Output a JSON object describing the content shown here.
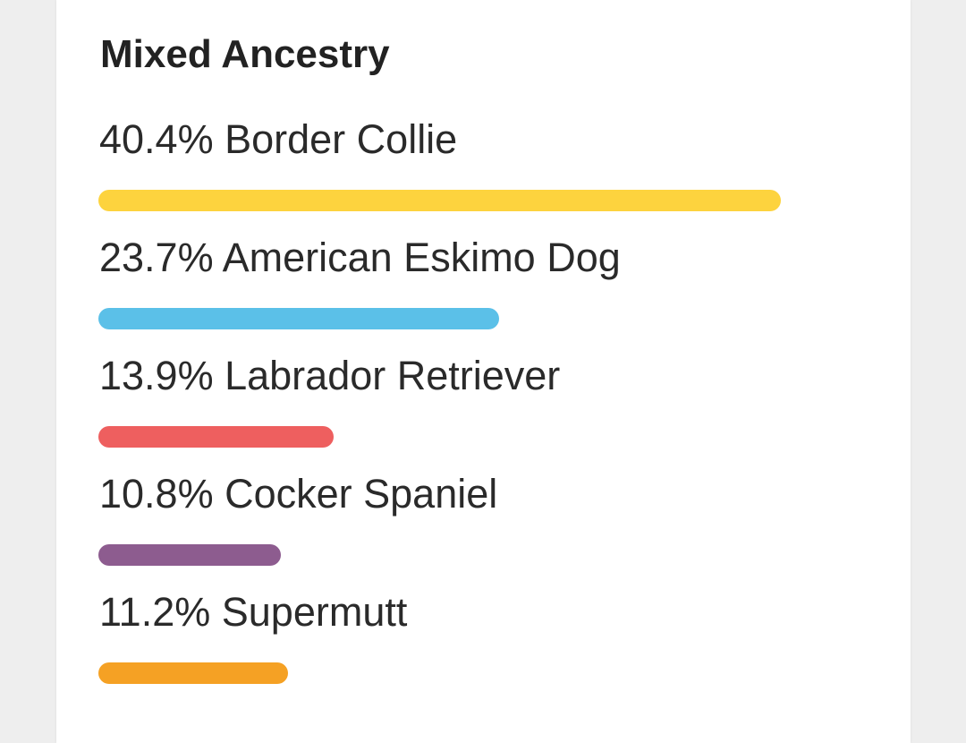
{
  "card": {
    "title": "Mixed Ancestry"
  },
  "ancestry": [
    {
      "percent": 40.4,
      "label": "40.4% Border Collie",
      "color": "#FDD33E"
    },
    {
      "percent": 23.7,
      "label": "23.7% American Eskimo Dog",
      "color": "#5BC0E8"
    },
    {
      "percent": 13.9,
      "label": "13.9% Labrador Retriever",
      "color": "#EE5F5F"
    },
    {
      "percent": 10.8,
      "label": "10.8% Cocker Spaniel",
      "color": "#8D5C8F"
    },
    {
      "percent": 11.2,
      "label": "11.2% Supermutt",
      "color": "#F5A124"
    }
  ]
}
